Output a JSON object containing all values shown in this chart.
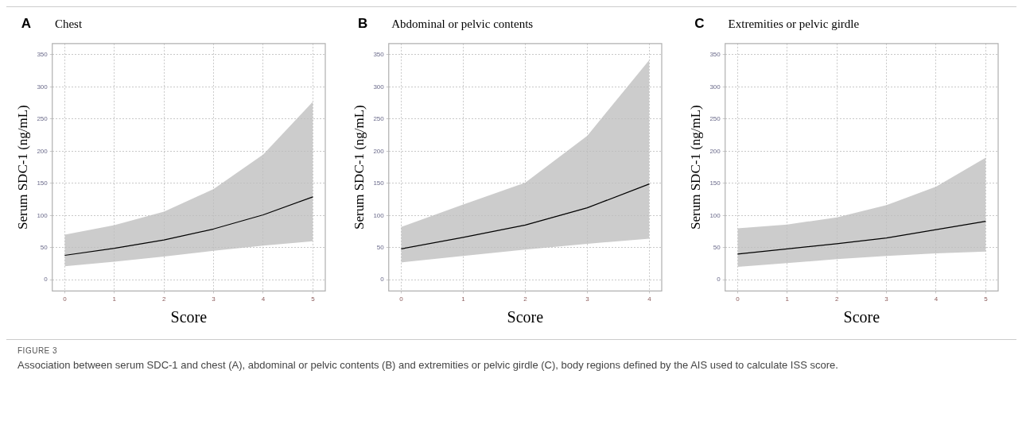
{
  "chart_data": [
    {
      "type": "line",
      "title": "Chest",
      "annotations": [
        "A"
      ],
      "xlabel": "Score",
      "ylabel": "Serum SDC-1 (ng/mL)",
      "xlim": [
        -0.25,
        5.25
      ],
      "xticks": [
        0,
        1,
        2,
        3,
        4,
        5
      ],
      "ylim": [
        -17.5,
        367.5
      ],
      "yticks": [
        0,
        50,
        100,
        150,
        200,
        250,
        300,
        350
      ],
      "grid": true,
      "legend": false,
      "marker": "none",
      "line_style": "solid",
      "series": [
        {
          "color": "#000000",
          "x": [
            0,
            1,
            2,
            3,
            4,
            5
          ],
          "values": [
            38,
            49,
            62,
            79,
            101,
            129
          ],
          "lower": [
            21,
            28,
            36,
            45,
            53,
            60
          ],
          "upper": [
            70,
            85,
            106,
            141,
            195,
            277
          ]
        }
      ]
    },
    {
      "type": "line",
      "title": "Abdominal or pelvic contents",
      "annotations": [
        "B"
      ],
      "xlabel": "Score",
      "ylabel": "Serum SDC-1 (ng/mL)",
      "xlim": [
        -0.2,
        4.2
      ],
      "xticks": [
        0,
        1,
        2,
        3,
        4
      ],
      "ylim": [
        -17.5,
        367.5
      ],
      "yticks": [
        0,
        50,
        100,
        150,
        200,
        250,
        300,
        350
      ],
      "grid": true,
      "legend": false,
      "marker": "none",
      "line_style": "solid",
      "series": [
        {
          "color": "#000000",
          "x": [
            0,
            1,
            2,
            3,
            4
          ],
          "values": [
            48,
            66,
            85,
            112,
            149
          ],
          "lower": [
            27,
            37,
            47,
            56,
            64
          ],
          "upper": [
            82,
            117,
            151,
            224,
            342
          ]
        }
      ]
    },
    {
      "type": "line",
      "title": "Extremities or pelvic girdle",
      "annotations": [
        "C"
      ],
      "xlabel": "Score",
      "ylabel": "Serum SDC-1 (ng/mL)",
      "xlim": [
        -0.25,
        5.25
      ],
      "xticks": [
        0,
        1,
        2,
        3,
        4,
        5
      ],
      "ylim": [
        -17.5,
        367.5
      ],
      "yticks": [
        0,
        50,
        100,
        150,
        200,
        250,
        300,
        350
      ],
      "grid": true,
      "legend": false,
      "marker": "none",
      "line_style": "solid",
      "series": [
        {
          "color": "#000000",
          "x": [
            0,
            1,
            2,
            3,
            4,
            5
          ],
          "values": [
            40,
            48,
            56,
            65,
            78,
            91
          ],
          "lower": [
            20,
            26,
            32,
            37,
            41,
            44
          ],
          "upper": [
            80,
            86,
            97,
            116,
            145,
            190
          ]
        }
      ]
    },
    {
      "type": "other",
      "title": "FIGURE 3",
      "annotations": [
        "Association between serum SDC-1 and chest (A), abdominal or pelvic contents (B) and extremities or pelvic girdle (C), body regions defined by the AIS used to calculate ISS score."
      ]
    }
  ]
}
